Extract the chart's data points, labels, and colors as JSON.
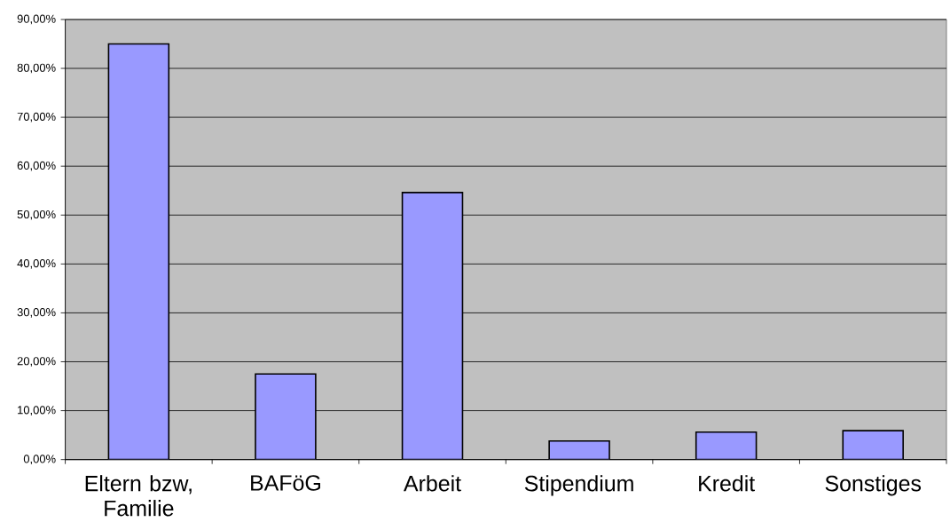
{
  "chart_data": {
    "type": "bar",
    "categories": [
      "Eltern bzw, Familie",
      "BAFöG",
      "Arbeit",
      "Stipendium",
      "Kredit",
      "Sonstiges"
    ],
    "values": [
      85,
      17.5,
      54.6,
      3.8,
      5.6,
      5.9
    ],
    "color": "#9999ff",
    "ylim": [
      0,
      90
    ],
    "yticks": [
      {
        "value": 0,
        "label": "0,00%"
      },
      {
        "value": 10,
        "label": "10,00%"
      },
      {
        "value": 20,
        "label": "20,00%"
      },
      {
        "value": 30,
        "label": "30,00%"
      },
      {
        "value": 40,
        "label": "40,00%"
      },
      {
        "value": 50,
        "label": "50,00%"
      },
      {
        "value": 60,
        "label": "60,00%"
      },
      {
        "value": 70,
        "label": "70,00%"
      },
      {
        "value": 80,
        "label": "80,00%"
      },
      {
        "value": 90,
        "label": "90,00%"
      }
    ],
    "grid": "y"
  }
}
